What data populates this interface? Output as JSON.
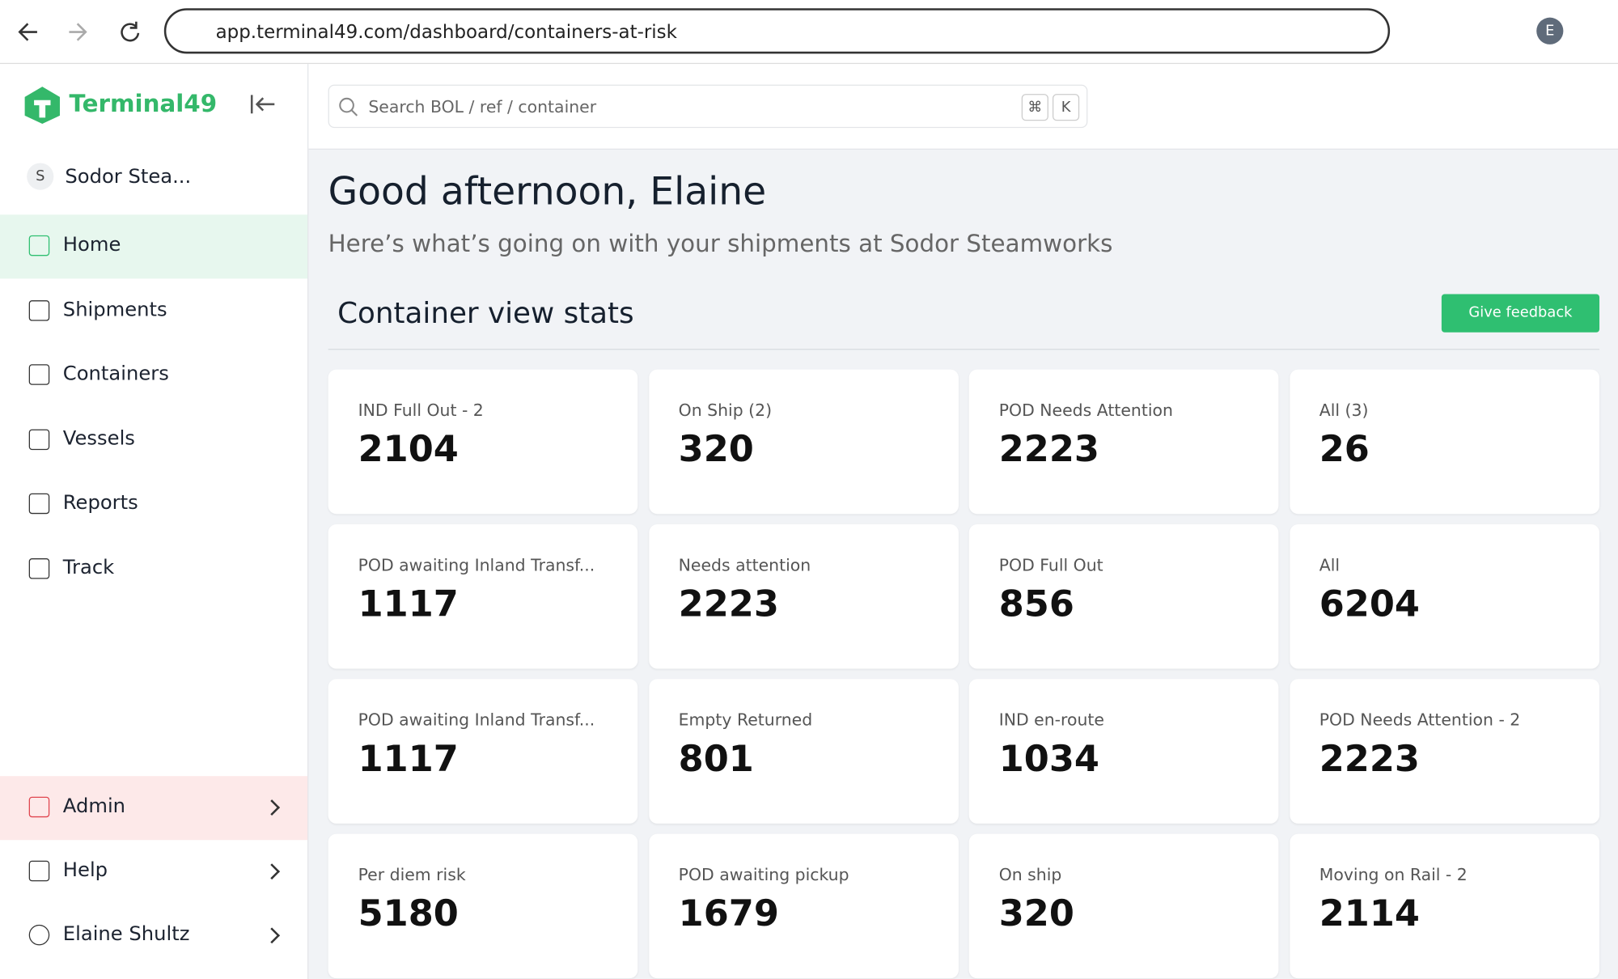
{
  "browser": {
    "url": "app.terminal49.com/dashboard/containers-at-risk",
    "profile_initial": "E"
  },
  "sidebar": {
    "brand": "Terminal49",
    "org_initial": "S",
    "org_name": "Sodor Stea...",
    "nav": [
      "Home",
      "Shipments",
      "Containers",
      "Vessels",
      "Reports",
      "Track"
    ],
    "footer": [
      "Admin",
      "Help",
      "Elaine Shultz"
    ]
  },
  "search": {
    "placeholder": "Search BOL / ref / container",
    "shortcut": [
      "⌘",
      "K"
    ]
  },
  "greeting": "Good afternoon, Elaine",
  "subtitle": "Here’s what’s going on with your shipments at Sodor Steamworks",
  "section": {
    "title": "Container view stats",
    "button": "Give feedback"
  },
  "cards": [
    {
      "label": "IND Full Out - 2",
      "value": 2104
    },
    {
      "label": "On Ship (2)",
      "value": 320
    },
    {
      "label": "POD Needs Attention",
      "value": 2223
    },
    {
      "label": "All (3)",
      "value": 26
    },
    {
      "label": "POD awaiting Inland Transf...",
      "value": 1117
    },
    {
      "label": "Needs attention",
      "value": 2223
    },
    {
      "label": "POD Full Out",
      "value": 856
    },
    {
      "label": "All",
      "value": 6204
    },
    {
      "label": "POD awaiting Inland Transf...",
      "value": 1117
    },
    {
      "label": "Empty Returned",
      "value": 801
    },
    {
      "label": "IND en-route",
      "value": 1034
    },
    {
      "label": "POD Needs Attention - 2",
      "value": 2223
    },
    {
      "label": "Per diem risk",
      "value": 5180
    },
    {
      "label": "POD awaiting pickup",
      "value": 1679
    },
    {
      "label": "On ship",
      "value": 320
    },
    {
      "label": "Moving on Rail - 2",
      "value": 2114
    }
  ]
}
